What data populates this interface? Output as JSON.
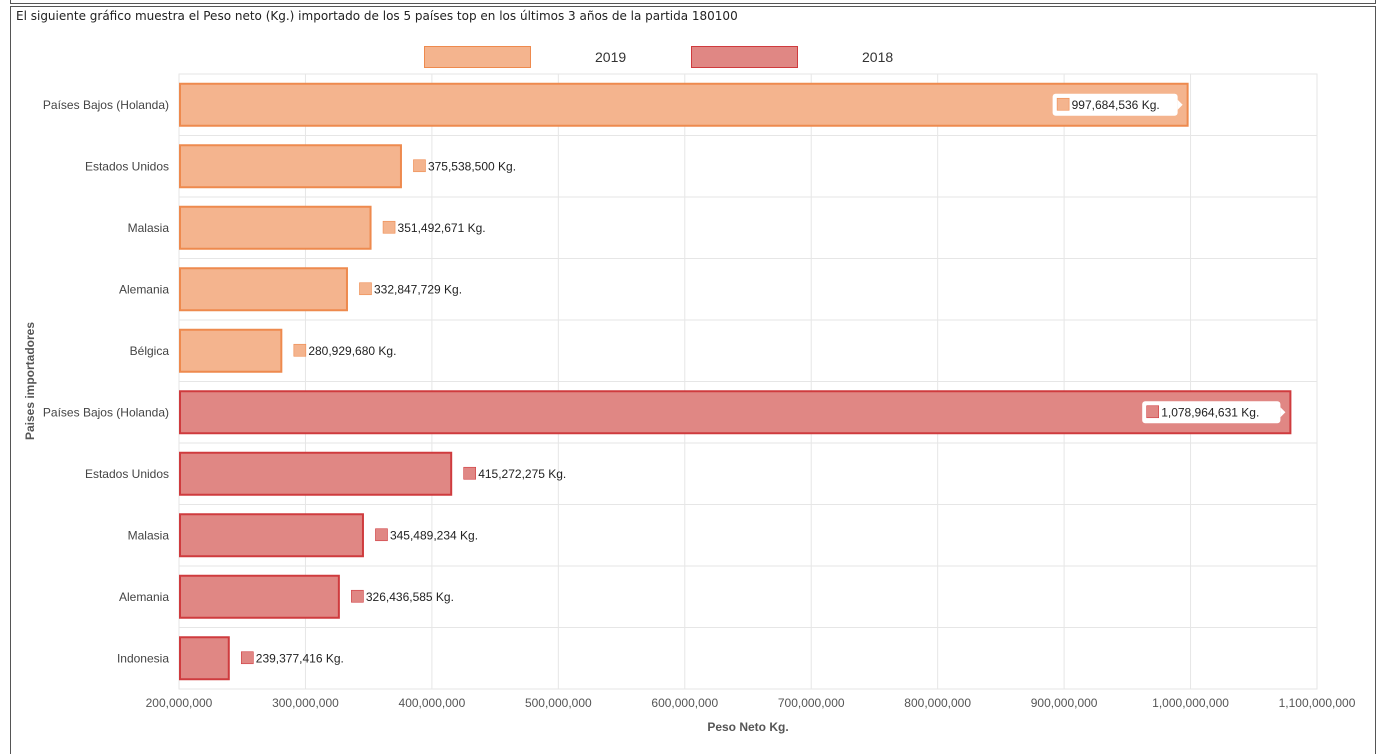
{
  "caption": "El siguiente gráfico muestra el Peso neto (Kg.) importado de los 5 países top en los últimos 3 años de la partida 180100",
  "chart_data": {
    "type": "bar",
    "orientation": "horizontal",
    "xlabel": "Peso Neto Kg.",
    "ylabel": "Paises importadores",
    "xlim": [
      200000000,
      1100000000
    ],
    "x_ticks": [
      "200,000,000",
      "300,000,000",
      "400,000,000",
      "500,000,000",
      "600,000,000",
      "700,000,000",
      "800,000,000",
      "900,000,000",
      "1,000,000,000",
      "1,100,000,000"
    ],
    "grid": true,
    "legend_position": "top",
    "value_suffix": " Kg.",
    "series": [
      {
        "name": "2019",
        "fill": "#f4b48e",
        "stroke": "#ee8a4e",
        "categories": [
          "Países Bajos (Holanda)",
          "Estados Unidos",
          "Malasia",
          "Alemania",
          "Bélgica"
        ],
        "values": [
          997684536,
          375538500,
          351492671,
          332847729,
          280929680
        ],
        "labels": [
          "997,684,536 Kg.",
          "375,538,500 Kg.",
          "351,492,671 Kg.",
          "332,847,729 Kg.",
          "280,929,680 Kg."
        ]
      },
      {
        "name": "2018",
        "fill": "#e08784",
        "stroke": "#cf3b3e",
        "categories": [
          "Países Bajos (Holanda)",
          "Estados Unidos",
          "Malasia",
          "Alemania",
          "Indonesia"
        ],
        "values": [
          1078964631,
          415272275,
          345489234,
          326436585,
          239377416
        ],
        "labels": [
          "1,078,964,631 Kg.",
          "415,272,275 Kg.",
          "345,489,234 Kg.",
          "326,436,585 Kg.",
          "239,377,416 Kg."
        ]
      }
    ]
  }
}
